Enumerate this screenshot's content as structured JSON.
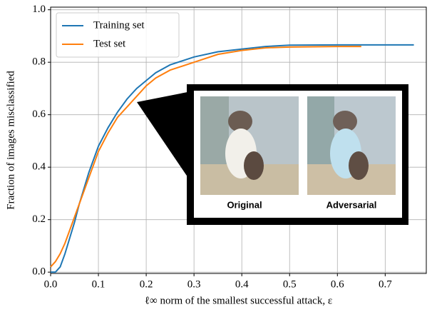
{
  "chart_data": {
    "type": "line",
    "xlabel": "ℓ∞ norm of the smallest successful attack, ε",
    "ylabel": "Fraction of images misclassified",
    "xlim": [
      0,
      0.786
    ],
    "ylim": [
      -0.005,
      1.01
    ],
    "xticks": [
      {
        "value": 0,
        "label": "0.0"
      },
      0.1,
      0.2,
      0.3,
      0.4,
      0.5,
      0.6,
      0.7
    ],
    "yticks": [
      {
        "value": 0,
        "label": "0.0"
      },
      0.2,
      0.4,
      0.6,
      0.8,
      {
        "value": 1,
        "label": "1.0"
      }
    ],
    "grid": true,
    "legend": "upper left",
    "series": [
      {
        "name": "Training set",
        "color": "#1f77b4",
        "x": [
          0,
          0.01,
          0.02,
          0.03,
          0.04,
          0.05,
          0.06,
          0.08,
          0.1,
          0.12,
          0.14,
          0.16,
          0.18,
          0.2,
          0.22,
          0.25,
          0.3,
          0.35,
          0.4,
          0.45,
          0.5,
          0.6,
          0.7,
          0.76
        ],
        "values": [
          0.0,
          0.0,
          0.02,
          0.07,
          0.13,
          0.19,
          0.26,
          0.38,
          0.48,
          0.55,
          0.61,
          0.66,
          0.7,
          0.73,
          0.76,
          0.79,
          0.82,
          0.84,
          0.85,
          0.86,
          0.865,
          0.866,
          0.866,
          0.866
        ]
      },
      {
        "name": "Test set",
        "color": "#ff7f0e",
        "x": [
          0,
          0.01,
          0.02,
          0.03,
          0.04,
          0.05,
          0.06,
          0.08,
          0.1,
          0.12,
          0.14,
          0.16,
          0.18,
          0.2,
          0.22,
          0.25,
          0.3,
          0.35,
          0.4,
          0.45,
          0.5,
          0.6,
          0.65
        ],
        "values": [
          0.02,
          0.04,
          0.07,
          0.11,
          0.16,
          0.21,
          0.26,
          0.36,
          0.46,
          0.53,
          0.59,
          0.63,
          0.67,
          0.71,
          0.74,
          0.77,
          0.8,
          0.83,
          0.845,
          0.855,
          0.858,
          0.86,
          0.86
        ]
      }
    ],
    "inset_labels": [
      "Original",
      "Adversarial"
    ]
  }
}
